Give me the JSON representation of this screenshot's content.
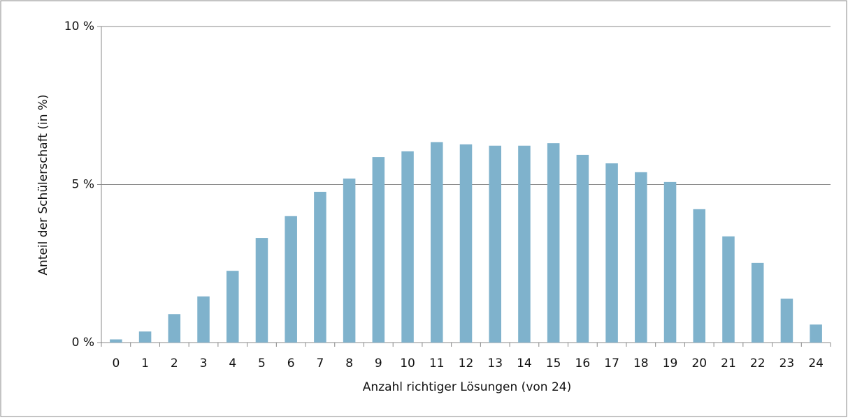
{
  "chart_data": {
    "type": "bar",
    "x_label": "Anzahl richtiger Lösungen (von 24)",
    "y_label": "Anteil der Schülerschaft (in %)",
    "categories": [
      "0",
      "1",
      "2",
      "3",
      "4",
      "5",
      "6",
      "7",
      "8",
      "9",
      "10",
      "11",
      "12",
      "13",
      "14",
      "15",
      "16",
      "17",
      "18",
      "19",
      "20",
      "21",
      "22",
      "23",
      "24"
    ],
    "values": [
      0.1,
      0.35,
      0.9,
      1.46,
      2.27,
      3.31,
      4.0,
      4.77,
      5.19,
      5.87,
      6.05,
      6.34,
      6.27,
      6.23,
      6.23,
      6.31,
      5.94,
      5.67,
      5.39,
      5.08,
      4.22,
      3.36,
      2.52,
      1.39,
      0.57
    ],
    "color": "#7fb2cc",
    "ylim": [
      0,
      10
    ],
    "yticks": [
      {
        "value": 0,
        "label": "0 %"
      },
      {
        "value": 5,
        "label": "5 %"
      },
      {
        "value": 10,
        "label": "10 %"
      }
    ],
    "grid": true
  }
}
